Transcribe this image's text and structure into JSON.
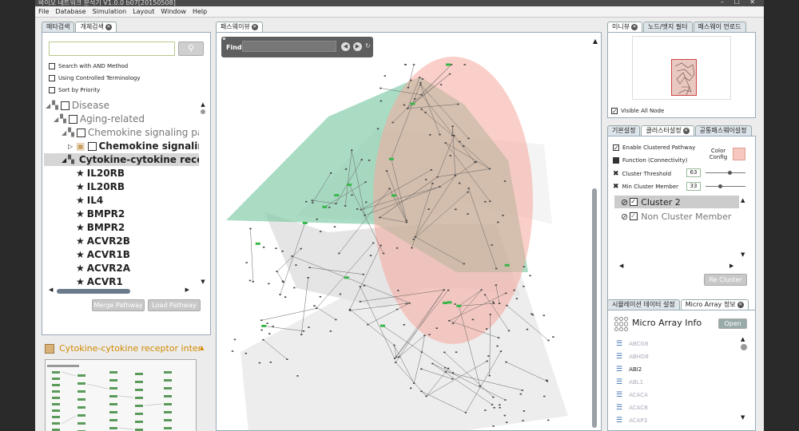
{
  "window": {
    "title": "바이오 네트워크 분석기 V1.0.0 b07[20150508]",
    "controls": "–  ☐  ✕"
  },
  "menu": [
    "File",
    "Database",
    "Simulation",
    "Layout",
    "Window",
    "Help"
  ],
  "left": {
    "tabs": [
      "메타검색",
      "개체검색"
    ],
    "search": {
      "placeholder": "",
      "value": ""
    },
    "options": [
      "Search with AND Method",
      "Using Controlled Terminology",
      "Sort by Priority"
    ],
    "tree": [
      {
        "label": "Disease",
        "level": 0
      },
      {
        "label": "Aging-related",
        "level": 1
      },
      {
        "label": "Chemokine signaling pa",
        "level": 2
      },
      {
        "label": "Chemokine signaling p",
        "level": 3
      },
      {
        "label": "Cytokine-cytokine rece",
        "level": 2
      }
    ],
    "genes": [
      "IL20RB",
      "IL20RB",
      "IL4",
      "BMPR2",
      "BMPR2",
      "ACVR2B",
      "ACVR1B",
      "ACVR2A",
      "ACVR1"
    ],
    "buttons": {
      "merge": "Merge Pathway",
      "load": "Load Pathway"
    },
    "detail_title": "Cytokine-cytokine receptor inter",
    "image_link": "image"
  },
  "center": {
    "tab": "패스웨이뷰",
    "find_label": "Find",
    "find_value": ""
  },
  "right": {
    "top_tabs": [
      "미니뷰",
      "노드/엣지 필터",
      "패스웨이 언로드"
    ],
    "visible_all": "Visible All Node",
    "mid_tabs": [
      "기본설정",
      "클러스터설정",
      "공통패스웨이설정"
    ],
    "enable_clustered": "Enable Clustered Pathway",
    "function_label": "Function (Connectivity)",
    "color_config": "Color Config",
    "threshold_label": "Cluster Threshold",
    "threshold_value": "63",
    "min_member_label": "Min Cluster Member",
    "min_member_value": "33",
    "clusters": [
      "Cluster 2",
      "Non Cluster Member"
    ],
    "recluster": "Re Cluster",
    "bottom_tabs": [
      "시뮬레이션 데이터 설정",
      "Micro Array 정보"
    ],
    "micro_title": "Micro Array Info",
    "open": "Open",
    "genes": [
      "ABCG8",
      "ABHD8",
      "ABI2",
      "ABL1",
      "ACACA",
      "ACACB",
      "ACAP3"
    ]
  },
  "colors": {
    "accent": "#d18a00",
    "cluster_red": "#f8b8b0",
    "cluster_green": "#9fd8bd",
    "cluster_gray": "#dcdcdc",
    "color_swatch": "#f6c8c0"
  }
}
